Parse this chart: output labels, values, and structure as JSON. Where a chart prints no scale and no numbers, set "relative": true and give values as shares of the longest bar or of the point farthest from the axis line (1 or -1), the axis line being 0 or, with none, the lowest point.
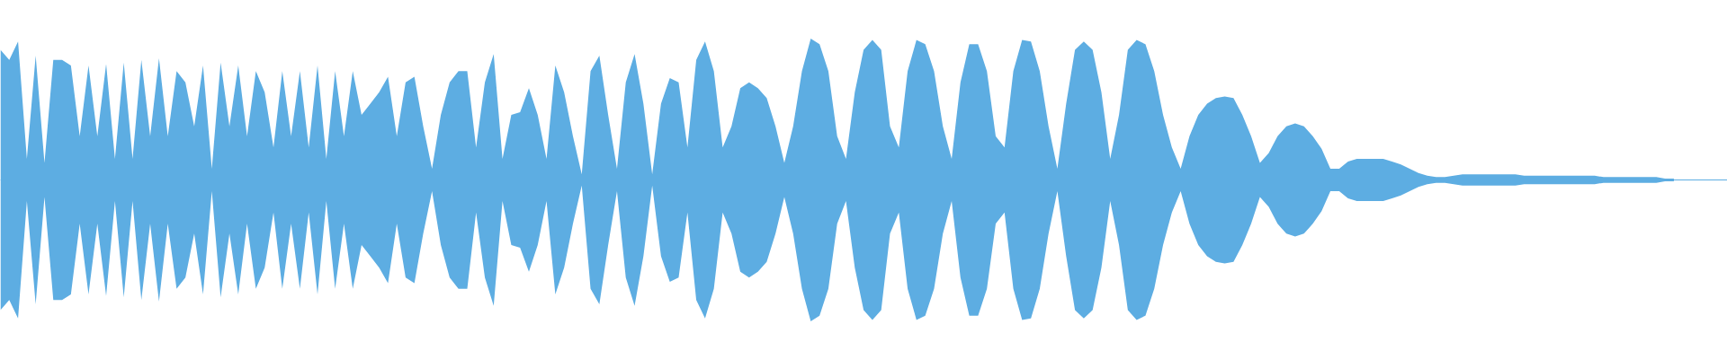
{
  "chart_data": {
    "type": "area",
    "relative": true,
    "ref_lines": [
      {
        "axis": "y",
        "value": 0,
        "color": "#5dade2"
      }
    ],
    "categories": [
      null,
      null,
      null,
      null,
      null,
      null,
      null,
      null,
      null,
      null,
      null,
      null,
      null,
      null,
      null,
      null,
      null,
      null,
      null,
      null,
      null,
      null,
      null,
      null,
      null,
      null,
      null,
      null,
      null,
      null,
      null,
      null,
      null,
      null,
      null,
      null,
      null,
      null,
      null,
      null,
      null,
      null,
      null,
      null,
      null,
      null,
      null,
      null,
      null,
      null,
      null,
      null,
      null,
      null,
      null,
      null,
      null,
      null,
      null,
      null,
      null,
      null,
      null,
      null,
      null,
      null,
      null,
      null,
      null,
      null,
      null,
      null,
      null,
      null,
      null,
      null,
      null,
      null,
      null,
      null,
      null,
      null,
      null,
      null,
      null,
      null,
      null,
      null,
      null,
      null,
      null,
      null,
      null,
      null,
      null,
      null,
      null,
      null,
      null,
      null,
      null,
      null,
      null,
      null,
      null,
      null,
      null,
      null,
      null,
      null,
      null,
      null,
      null,
      null,
      null,
      null,
      null,
      null,
      null,
      null,
      null,
      null,
      null,
      null,
      null,
      null,
      null,
      null,
      null,
      null,
      null,
      null,
      null,
      null,
      null,
      null,
      null,
      null,
      null,
      null,
      null,
      null,
      null,
      null,
      null,
      null,
      null,
      null,
      null,
      null,
      null,
      null,
      null,
      null,
      null,
      null,
      null,
      null,
      null,
      null,
      null,
      null,
      null,
      null,
      null,
      null,
      null,
      null,
      null,
      null,
      null,
      null,
      null,
      null,
      null,
      null,
      null,
      null,
      null,
      null,
      null,
      null,
      null,
      null,
      null,
      null,
      null,
      null,
      null,
      null,
      null
    ],
    "series": [
      {
        "color": "#5dade2",
        "values": [
          0.92,
          0.85,
          0.98,
          0.15,
          0.88,
          0.12,
          0.85,
          0.85,
          0.81,
          0.31,
          0.81,
          0.31,
          0.82,
          0.15,
          0.83,
          0.15,
          0.85,
          0.31,
          0.86,
          0.31,
          0.77,
          0.69,
          0.38,
          0.81,
          0.08,
          0.83,
          0.38,
          0.81,
          0.31,
          0.77,
          0.62,
          0.23,
          0.77,
          0.31,
          0.77,
          0.23,
          0.81,
          0.15,
          0.77,
          0.31,
          0.77,
          0.46,
          0.54,
          0.62,
          0.73,
          0.31,
          0.69,
          0.73,
          0.38,
          0.08,
          0.46,
          0.69,
          0.77,
          0.77,
          0.23,
          0.69,
          0.89,
          0.15,
          0.46,
          0.48,
          0.65,
          0.46,
          0.15,
          0.81,
          0.62,
          0.31,
          0.04,
          0.77,
          0.88,
          0.46,
          0.08,
          0.69,
          0.89,
          0.54,
          0.04,
          0.54,
          0.72,
          0.69,
          0.23,
          0.85,
          0.98,
          0.77,
          0.23,
          0.38,
          0.65,
          0.69,
          0.65,
          0.58,
          0.38,
          0.12,
          0.38,
          0.77,
          1,
          0.96,
          0.77,
          0.31,
          0.15,
          0.62,
          0.92,
          0.99,
          0.92,
          0.38,
          0.23,
          0.77,
          0.99,
          0.96,
          0.77,
          0.38,
          0.15,
          0.69,
          0.96,
          0.96,
          0.77,
          0.31,
          0.23,
          0.77,
          0.99,
          0.98,
          0.77,
          0.38,
          0.08,
          0.54,
          0.92,
          0.98,
          0.92,
          0.62,
          0.15,
          0.46,
          0.92,
          0.99,
          0.96,
          0.77,
          0.46,
          0.23,
          0.08,
          0.31,
          0.46,
          0.54,
          0.58,
          0.59,
          0.58,
          0.46,
          0.31,
          0.12,
          0.19,
          0.31,
          0.38,
          0.4,
          0.38,
          0.31,
          0.22,
          0.08,
          0.08,
          0.13,
          0.15,
          0.15,
          0.15,
          0.15,
          0.13,
          0.11,
          0.08,
          0.05,
          0.03,
          0.02,
          0.02,
          0.03,
          0.04,
          0.04,
          0.04,
          0.04,
          0.04,
          0.04,
          0.04,
          0.03,
          0.03,
          0.03,
          0.03,
          0.03,
          0.03,
          0.03,
          0.03,
          0.03,
          0.02,
          0.02,
          0.02,
          0.02,
          0.02,
          0.02,
          0.02,
          0.01,
          0.01
        ]
      },
      {
        "color": "#5dade2",
        "values": [
          -0.92,
          -0.85,
          -0.98,
          -0.15,
          -0.88,
          -0.12,
          -0.85,
          -0.85,
          -0.81,
          -0.31,
          -0.81,
          -0.31,
          -0.82,
          -0.15,
          -0.83,
          -0.15,
          -0.85,
          -0.31,
          -0.86,
          -0.31,
          -0.77,
          -0.69,
          -0.38,
          -0.81,
          -0.08,
          -0.83,
          -0.38,
          -0.81,
          -0.31,
          -0.77,
          -0.62,
          -0.23,
          -0.77,
          -0.31,
          -0.77,
          -0.23,
          -0.81,
          -0.15,
          -0.77,
          -0.31,
          -0.77,
          -0.46,
          -0.54,
          -0.62,
          -0.73,
          -0.31,
          -0.69,
          -0.73,
          -0.38,
          -0.08,
          -0.46,
          -0.69,
          -0.77,
          -0.77,
          -0.23,
          -0.69,
          -0.89,
          -0.15,
          -0.46,
          -0.48,
          -0.65,
          -0.46,
          -0.15,
          -0.81,
          -0.62,
          -0.31,
          -0.04,
          -0.77,
          -0.88,
          -0.46,
          -0.08,
          -0.69,
          -0.89,
          -0.54,
          -0.04,
          -0.54,
          -0.72,
          -0.69,
          -0.23,
          -0.85,
          -0.98,
          -0.77,
          -0.23,
          -0.38,
          -0.65,
          -0.69,
          -0.65,
          -0.58,
          -0.38,
          -0.12,
          -0.38,
          -0.77,
          -1,
          -0.96,
          -0.77,
          -0.31,
          -0.15,
          -0.62,
          -0.92,
          -0.99,
          -0.92,
          -0.38,
          -0.23,
          -0.77,
          -0.99,
          -0.96,
          -0.77,
          -0.38,
          -0.15,
          -0.69,
          -0.96,
          -0.96,
          -0.77,
          -0.31,
          -0.23,
          -0.77,
          -0.99,
          -0.98,
          -0.77,
          -0.38,
          -0.08,
          -0.54,
          -0.92,
          -0.98,
          -0.92,
          -0.62,
          -0.15,
          -0.46,
          -0.92,
          -0.99,
          -0.96,
          -0.77,
          -0.46,
          -0.23,
          -0.08,
          -0.31,
          -0.46,
          -0.54,
          -0.58,
          -0.59,
          -0.58,
          -0.46,
          -0.31,
          -0.12,
          -0.19,
          -0.31,
          -0.38,
          -0.4,
          -0.38,
          -0.31,
          -0.22,
          -0.08,
          -0.08,
          -0.13,
          -0.15,
          -0.15,
          -0.15,
          -0.15,
          -0.13,
          -0.11,
          -0.08,
          -0.05,
          -0.03,
          -0.02,
          -0.02,
          -0.03,
          -0.04,
          -0.04,
          -0.04,
          -0.04,
          -0.04,
          -0.04,
          -0.04,
          -0.03,
          -0.03,
          -0.03,
          -0.03,
          -0.03,
          -0.03,
          -0.03,
          -0.03,
          -0.03,
          -0.02,
          -0.02,
          -0.02,
          -0.02,
          -0.02,
          -0.02,
          -0.02,
          -0.01,
          -0.01
        ]
      }
    ]
  }
}
